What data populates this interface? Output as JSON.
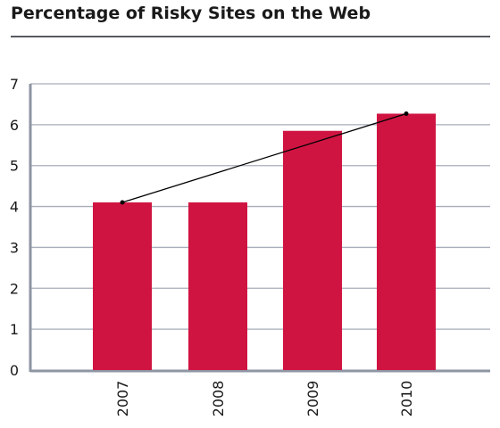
{
  "chart_data": {
    "type": "bar",
    "title": "Percentage of Risky Sites on the Web",
    "xlabel": "",
    "ylabel": "",
    "categories": [
      "2007",
      "2008",
      "2009",
      "2010"
    ],
    "values": [
      4.1,
      4.1,
      5.85,
      6.27
    ],
    "trend_line": {
      "from_category": "2007",
      "to_category": "2010",
      "y_values": [
        4.1,
        6.27
      ]
    },
    "ylim": [
      0,
      7
    ],
    "yticks": [
      0,
      1,
      2,
      3,
      4,
      5,
      6,
      7
    ],
    "grid": true,
    "legend": "none",
    "colors": {
      "bar": "#d01442",
      "grid": "#a7adb9",
      "axis": "#8e95a3",
      "trend": "#000000",
      "title_rule": "#555a60"
    }
  }
}
